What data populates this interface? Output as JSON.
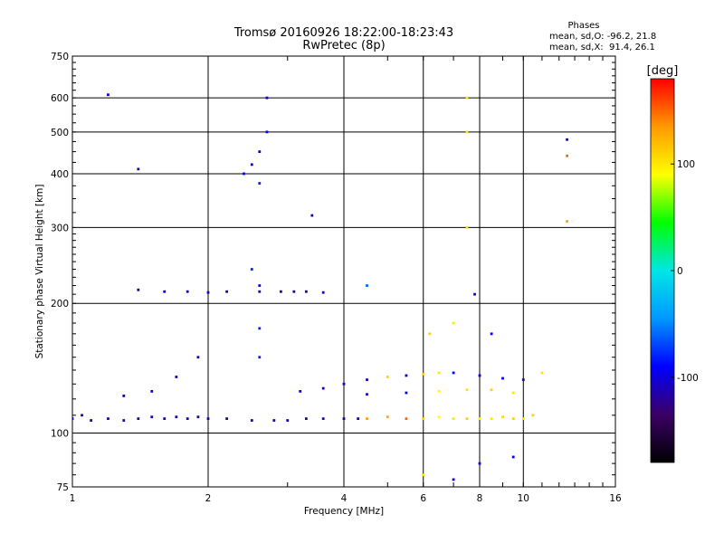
{
  "chart_data": {
    "type": "scatter",
    "title": "Tromsø 20160926 18:22:00-18:23:43",
    "subtitle": "RwPretec (8p)",
    "xlabel": "Frequency [MHz]",
    "ylabel": "Stationary phase Virtual Height [km]",
    "x_scale": "log",
    "y_scale": "log",
    "xlim": [
      1,
      16
    ],
    "ylim": [
      75,
      750
    ],
    "x_ticks": [
      1,
      2,
      4,
      6,
      8,
      10,
      16
    ],
    "x_tick_labels": [
      "1",
      "2",
      "4",
      "6",
      "8",
      "10",
      "16"
    ],
    "y_ticks": [
      75,
      100,
      200,
      300,
      400,
      500,
      600,
      750
    ],
    "y_tick_labels": [
      "75",
      "100",
      "200",
      "300",
      "400",
      "500",
      "600",
      "750"
    ],
    "grid": true,
    "phase_box": {
      "heading": "Phases",
      "line_o": "mean, sd,O: -96.2, 21.8",
      "line_x": "mean, sd,X:  91.4, 26.1"
    },
    "colorbar": {
      "label": "[deg]",
      "range": [
        -180,
        180
      ],
      "ticks": [
        100,
        0,
        -100
      ],
      "tick_labels": [
        "100",
        "0",
        "-100"
      ],
      "colors": [
        "#000000",
        "#3b0066",
        "#0000ff",
        "#0099ff",
        "#00e6e6",
        "#00ff00",
        "#ffff00",
        "#ff9900",
        "#ff0000"
      ]
    },
    "series": [
      {
        "points": [
          {
            "x": 1.0,
            "y": 108,
            "phase": -110
          },
          {
            "x": 1.05,
            "y": 110,
            "phase": -110
          },
          {
            "x": 1.1,
            "y": 107,
            "phase": -110
          },
          {
            "x": 1.2,
            "y": 108,
            "phase": -110
          },
          {
            "x": 1.3,
            "y": 107,
            "phase": -110
          },
          {
            "x": 1.4,
            "y": 108,
            "phase": -115
          },
          {
            "x": 1.5,
            "y": 109,
            "phase": -110
          },
          {
            "x": 1.6,
            "y": 108,
            "phase": -110
          },
          {
            "x": 1.7,
            "y": 109,
            "phase": -110
          },
          {
            "x": 1.8,
            "y": 108,
            "phase": -110
          },
          {
            "x": 1.9,
            "y": 109,
            "phase": -110
          },
          {
            "x": 2.0,
            "y": 108,
            "phase": -110
          },
          {
            "x": 2.2,
            "y": 108,
            "phase": -110
          },
          {
            "x": 2.5,
            "y": 107,
            "phase": -110
          },
          {
            "x": 2.8,
            "y": 107,
            "phase": -110
          },
          {
            "x": 3.0,
            "y": 107,
            "phase": -110
          },
          {
            "x": 3.3,
            "y": 108,
            "phase": -110
          },
          {
            "x": 3.6,
            "y": 108,
            "phase": -110
          },
          {
            "x": 4.0,
            "y": 108,
            "phase": -110
          },
          {
            "x": 4.3,
            "y": 108,
            "phase": -110
          },
          {
            "x": 4.5,
            "y": 108,
            "phase": 130
          },
          {
            "x": 5.0,
            "y": 109,
            "phase": 130
          },
          {
            "x": 5.5,
            "y": 108,
            "phase": 150
          },
          {
            "x": 6.0,
            "y": 108,
            "phase": 110
          },
          {
            "x": 6.5,
            "y": 109,
            "phase": 90
          },
          {
            "x": 7.0,
            "y": 108,
            "phase": 100
          },
          {
            "x": 7.5,
            "y": 108,
            "phase": 110
          },
          {
            "x": 8.0,
            "y": 108,
            "phase": 95
          },
          {
            "x": 8.5,
            "y": 108,
            "phase": 100
          },
          {
            "x": 9.0,
            "y": 109,
            "phase": 105
          },
          {
            "x": 9.5,
            "y": 108,
            "phase": 110
          },
          {
            "x": 10.0,
            "y": 108,
            "phase": 100
          },
          {
            "x": 10.5,
            "y": 110,
            "phase": 110
          },
          {
            "x": 1.4,
            "y": 215,
            "phase": -110
          },
          {
            "x": 1.6,
            "y": 213,
            "phase": -110
          },
          {
            "x": 1.8,
            "y": 213,
            "phase": -110
          },
          {
            "x": 2.0,
            "y": 212,
            "phase": -110
          },
          {
            "x": 2.2,
            "y": 213,
            "phase": -115
          },
          {
            "x": 2.6,
            "y": 213,
            "phase": -110
          },
          {
            "x": 2.9,
            "y": 213,
            "phase": -110
          },
          {
            "x": 3.1,
            "y": 213,
            "phase": -110
          },
          {
            "x": 3.3,
            "y": 213,
            "phase": -110
          },
          {
            "x": 3.6,
            "y": 212,
            "phase": -110
          },
          {
            "x": 3.2,
            "y": 125,
            "phase": -110
          },
          {
            "x": 3.6,
            "y": 127,
            "phase": -110
          },
          {
            "x": 4.0,
            "y": 130,
            "phase": -110
          },
          {
            "x": 4.5,
            "y": 133,
            "phase": -110
          },
          {
            "x": 5.0,
            "y": 135,
            "phase": 110
          },
          {
            "x": 5.5,
            "y": 136,
            "phase": -110
          },
          {
            "x": 6.0,
            "y": 137,
            "phase": 110
          },
          {
            "x": 6.5,
            "y": 138,
            "phase": 100
          },
          {
            "x": 7.0,
            "y": 138,
            "phase": -90
          },
          {
            "x": 8.0,
            "y": 136,
            "phase": -90
          },
          {
            "x": 9.0,
            "y": 134,
            "phase": -100
          },
          {
            "x": 10.0,
            "y": 133,
            "phase": -100
          },
          {
            "x": 11.0,
            "y": 138,
            "phase": 100
          },
          {
            "x": 4.5,
            "y": 123,
            "phase": -110
          },
          {
            "x": 5.5,
            "y": 124,
            "phase": -100
          },
          {
            "x": 6.5,
            "y": 125,
            "phase": 90
          },
          {
            "x": 7.5,
            "y": 126,
            "phase": 100
          },
          {
            "x": 8.5,
            "y": 126,
            "phase": 110
          },
          {
            "x": 9.5,
            "y": 124,
            "phase": 100
          },
          {
            "x": 2.4,
            "y": 400,
            "phase": -100
          },
          {
            "x": 2.5,
            "y": 420,
            "phase": -90
          },
          {
            "x": 2.6,
            "y": 450,
            "phase": -100
          },
          {
            "x": 2.7,
            "y": 500,
            "phase": -90
          },
          {
            "x": 2.7,
            "y": 600,
            "phase": -100
          },
          {
            "x": 2.6,
            "y": 380,
            "phase": -80
          },
          {
            "x": 2.5,
            "y": 240,
            "phase": -80
          },
          {
            "x": 2.6,
            "y": 220,
            "phase": -90
          },
          {
            "x": 2.6,
            "y": 175,
            "phase": -80
          },
          {
            "x": 2.6,
            "y": 150,
            "phase": -80
          },
          {
            "x": 1.9,
            "y": 150,
            "phase": -100
          },
          {
            "x": 1.7,
            "y": 135,
            "phase": -105
          },
          {
            "x": 1.5,
            "y": 125,
            "phase": -110
          },
          {
            "x": 1.3,
            "y": 122,
            "phase": -110
          },
          {
            "x": 3.4,
            "y": 320,
            "phase": -110
          },
          {
            "x": 7.5,
            "y": 300,
            "phase": 100
          },
          {
            "x": 7.5,
            "y": 500,
            "phase": 100
          },
          {
            "x": 7.5,
            "y": 600,
            "phase": 100
          },
          {
            "x": 12.5,
            "y": 480,
            "phase": -90
          },
          {
            "x": 12.5,
            "y": 440,
            "phase": 150
          },
          {
            "x": 12.5,
            "y": 310,
            "phase": 130
          },
          {
            "x": 1.2,
            "y": 610,
            "phase": -110
          },
          {
            "x": 1.4,
            "y": 410,
            "phase": -110
          },
          {
            "x": 6.2,
            "y": 170,
            "phase": 110
          },
          {
            "x": 7.0,
            "y": 180,
            "phase": 100
          },
          {
            "x": 7.8,
            "y": 210,
            "phase": -100
          },
          {
            "x": 8.5,
            "y": 170,
            "phase": -90
          },
          {
            "x": 4.5,
            "y": 220,
            "phase": -60
          },
          {
            "x": 6.0,
            "y": 80,
            "phase": 100
          },
          {
            "x": 7.0,
            "y": 78,
            "phase": -100
          },
          {
            "x": 8.0,
            "y": 85,
            "phase": -100
          },
          {
            "x": 9.5,
            "y": 88,
            "phase": -100
          }
        ]
      }
    ]
  }
}
